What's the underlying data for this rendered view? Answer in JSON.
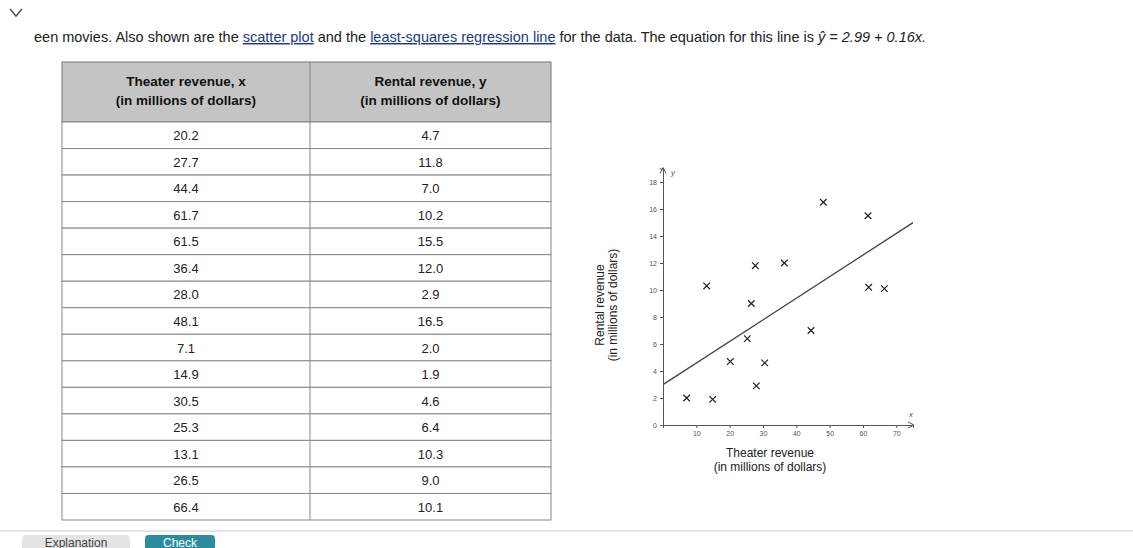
{
  "header": {
    "lead": "een movies. Also shown are the ",
    "link1": "scatter plot",
    "mid": " and the ",
    "link2": "least-squares regression line",
    "tail": " for the data. The equation for this line is ",
    "equation": "ŷ = 2.99 + 0.16x."
  },
  "table": {
    "header": [
      [
        "Theater revenue, x",
        "(in millions of dollars)"
      ],
      [
        "Rental revenue, y",
        "(in millions of dollars)"
      ]
    ],
    "rows": [
      [
        "20.2",
        "4.7"
      ],
      [
        "27.7",
        "11.8"
      ],
      [
        "44.4",
        "7.0"
      ],
      [
        "61.7",
        "10.2"
      ],
      [
        "61.5",
        "15.5"
      ],
      [
        "36.4",
        "12.0"
      ],
      [
        "28.0",
        "2.9"
      ],
      [
        "48.1",
        "16.5"
      ],
      [
        "7.1",
        "2.0"
      ],
      [
        "14.9",
        "1.9"
      ],
      [
        "30.5",
        "4.6"
      ],
      [
        "25.3",
        "6.4"
      ],
      [
        "13.1",
        "10.3"
      ],
      [
        "26.5",
        "9.0"
      ],
      [
        "66.4",
        "10.1"
      ]
    ]
  },
  "chart_data": {
    "type": "scatter",
    "x_label": [
      "Theater revenue",
      "(in millions of dollars)"
    ],
    "y_label": [
      "Rental revenue",
      "(in millions of dollars)"
    ],
    "x_axis_symbol": "x",
    "y_axis_symbol": "y",
    "x": [
      20.2,
      27.7,
      44.4,
      61.7,
      61.5,
      36.4,
      28.0,
      48.1,
      7.1,
      14.9,
      30.5,
      25.3,
      13.1,
      26.5,
      66.4
    ],
    "values": [
      4.7,
      11.8,
      7.0,
      10.2,
      15.5,
      12.0,
      2.9,
      16.5,
      2.0,
      1.9,
      4.6,
      6.4,
      10.3,
      9.0,
      10.1
    ],
    "marker": "x",
    "color": "#222222",
    "xlim": [
      0,
      75
    ],
    "ylim": [
      0,
      19
    ],
    "xticks": [
      10,
      20,
      30,
      40,
      50,
      60,
      70
    ],
    "yticks": [
      0,
      2,
      4,
      6,
      8,
      10,
      12,
      14,
      16,
      18
    ],
    "regression_line": {
      "x": [
        0,
        75
      ],
      "values": [
        2.99,
        14.99
      ],
      "color": "#444444"
    }
  },
  "buttons": [
    "Explanation",
    "Check"
  ]
}
